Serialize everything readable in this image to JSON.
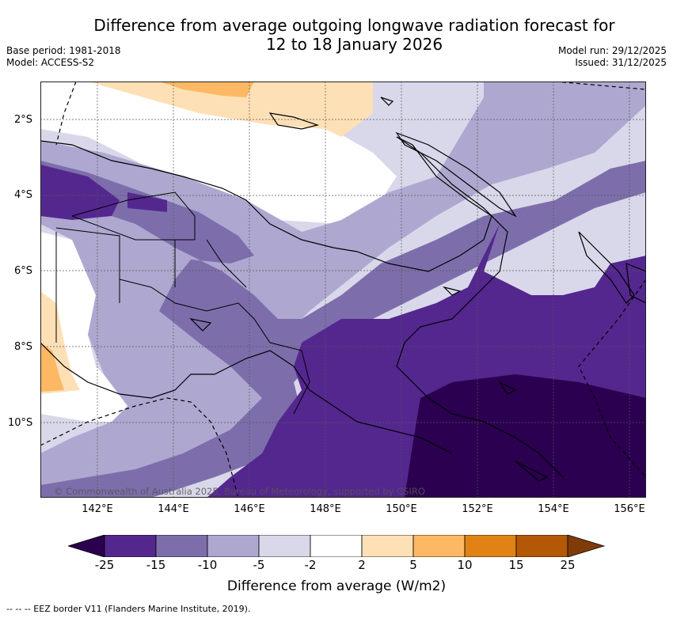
{
  "title": {
    "line1": "Difference from average outgoing longwave radiation forecast for",
    "line2": "12 to 18 January 2026"
  },
  "meta": {
    "base_period": "Base period: 1981-2018",
    "model": "Model: ACCESS-S2",
    "model_run": "Model run: 29/12/2025",
    "issued": "Issued: 31/12/2025"
  },
  "axes": {
    "lat_labels": [
      "2°S",
      "4°S",
      "6°S",
      "8°S",
      "10°S"
    ],
    "lon_labels": [
      "142°E",
      "144°E",
      "146°E",
      "148°E",
      "150°E",
      "152°E",
      "154°E",
      "156°E"
    ]
  },
  "colorbar": {
    "ticks": [
      "-25",
      "-15",
      "-10",
      "-5",
      "-2",
      "2",
      "5",
      "10",
      "15",
      "25"
    ],
    "colors": [
      "#2b0050",
      "#54278f",
      "#7d6eab",
      "#aea8d0",
      "#d9d8ea",
      "#ffffff",
      "#fee0b6",
      "#fdb863",
      "#e08214",
      "#b35806",
      "#7f3b08"
    ],
    "label": "Difference from average (W/m2)"
  },
  "copyright": "© Commonwealth of Australia 2025, Bureau of Meteorology, supported by CSIRO",
  "footer": "--  --  -- EEZ border V11 (Flanders Marine Institute, 2019)."
}
